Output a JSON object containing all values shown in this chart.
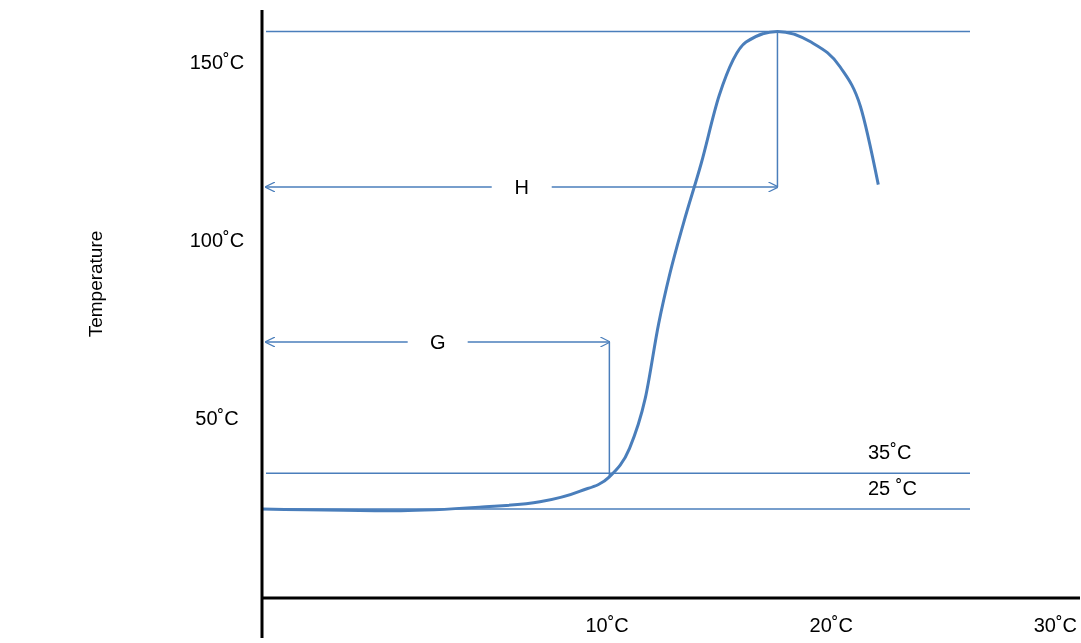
{
  "chart_data": {
    "type": "line",
    "ylabel": "Temperature",
    "xlim": [
      -5.4,
      31.1
    ],
    "ylim": [
      0,
      165
    ],
    "xticks": [
      {
        "value": 10,
        "label": "10˚C"
      },
      {
        "value": 20,
        "label": "20˚C"
      },
      {
        "value": 30,
        "label": "30˚C"
      }
    ],
    "yticks": [
      {
        "value": 50,
        "label": "50˚C"
      },
      {
        "value": 100,
        "label": "100˚C"
      },
      {
        "value": 150,
        "label": "150˚C"
      }
    ],
    "series": [
      {
        "color": "#4a7ebb",
        "x": [
          -5.4,
          0.8,
          4.3,
          7,
          8.8,
          10.1,
          11,
          11.7,
          12.3,
          12.8,
          13.4,
          14.2,
          15,
          16.2,
          17.6,
          19.1,
          20.4,
          21.3,
          22.1
        ],
        "values": [
          25,
          24.5,
          25.5,
          27,
          30,
          34,
          42,
          56,
          77,
          91,
          105,
          122,
          141,
          156,
          159,
          156,
          149,
          138,
          116
        ]
      }
    ],
    "ref_lines": [
      {
        "axis": "y",
        "value": 35,
        "label": "35˚C",
        "color": "#4a7ebb"
      },
      {
        "axis": "y",
        "value": 25,
        "label": "25 ˚C",
        "color": "#4a7ebb"
      },
      {
        "axis": "y",
        "value": 159,
        "color": "#4a7ebb"
      },
      {
        "axis": "x",
        "value": 10.1,
        "label": "G",
        "color": "#4a7ebb"
      },
      {
        "axis": "x",
        "value": 17.6,
        "label": "H",
        "color": "#4a7ebb"
      }
    ]
  }
}
